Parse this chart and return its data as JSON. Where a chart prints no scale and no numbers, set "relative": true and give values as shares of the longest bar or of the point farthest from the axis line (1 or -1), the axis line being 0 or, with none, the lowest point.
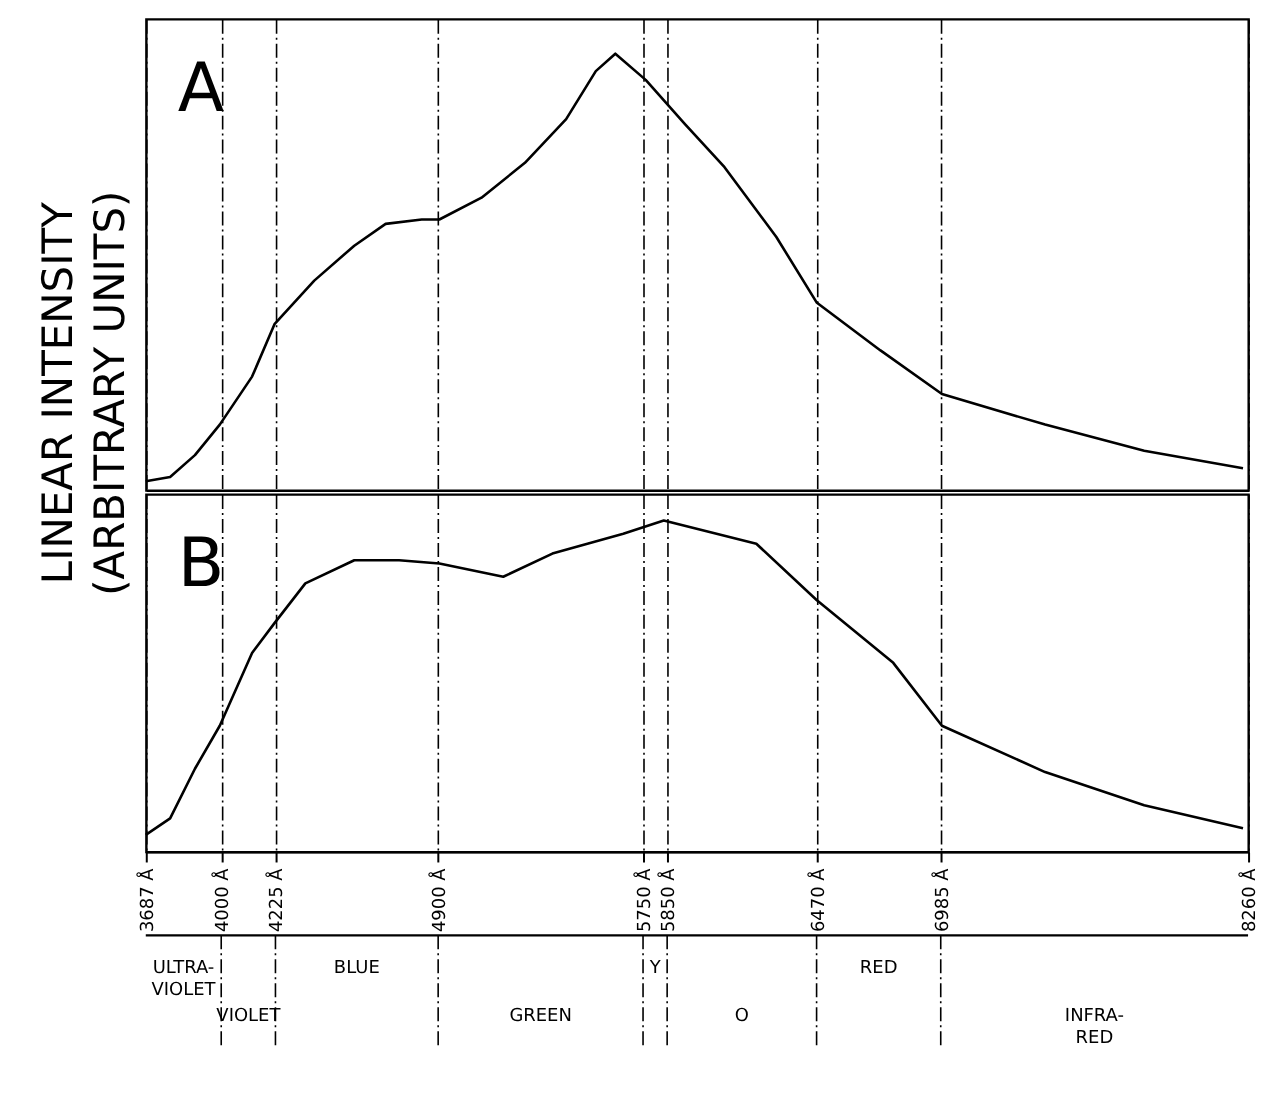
{
  "chart_data": [
    {
      "type": "line",
      "relative": true,
      "ylabel": "LINEAR INTENSITY\n(ARBITRARY UNITS)",
      "annotations": [
        "A"
      ],
      "color": "#000000",
      "grid": "x",
      "tick_labels": false,
      "x": [
        3687,
        3788,
        3891,
        3994,
        4128,
        4221,
        4386,
        4552,
        4682,
        4832,
        4905,
        5080,
        5260,
        5431,
        5554,
        5635,
        5761,
        5922,
        6088,
        6303,
        6470,
        6735,
        6990,
        7418,
        7829,
        8239
      ],
      "values": [
        0.02,
        0.03,
        0.08,
        0.15,
        0.26,
        0.38,
        0.48,
        0.56,
        0.61,
        0.62,
        0.62,
        0.67,
        0.75,
        0.85,
        0.96,
        1.0,
        0.94,
        0.84,
        0.74,
        0.58,
        0.43,
        0.32,
        0.22,
        0.15,
        0.09,
        0.05
      ],
      "xlim": [
        3687,
        8260
      ]
    },
    {
      "type": "line",
      "relative": true,
      "annotations": [
        "B"
      ],
      "color": "#000000",
      "grid": "x",
      "tick_labels": "x",
      "x": [
        3687,
        3788,
        3891,
        3994,
        4128,
        4221,
        4349,
        4552,
        4738,
        4905,
        5170,
        5374,
        5668,
        5836,
        6220,
        6470,
        6788,
        6990,
        7418,
        7829,
        8239
      ],
      "values": [
        0.05,
        0.1,
        0.25,
        0.38,
        0.6,
        0.69,
        0.81,
        0.88,
        0.88,
        0.87,
        0.83,
        0.9,
        0.96,
        1.0,
        0.93,
        0.76,
        0.57,
        0.38,
        0.24,
        0.14,
        0.07
      ],
      "xlim": [
        3687,
        8260
      ],
      "xticks": [
        {
          "value": 3687,
          "label": "3687 Å"
        },
        {
          "value": 4000,
          "label": "4000 Å"
        },
        {
          "value": 4225,
          "label": "4225 Å"
        },
        {
          "value": 4900,
          "label": "4900 Å"
        },
        {
          "value": 5750,
          "label": "5750 Å"
        },
        {
          "value": 5850,
          "label": "5850 Å"
        },
        {
          "value": 6470,
          "label": "6470 Å"
        },
        {
          "value": 6985,
          "label": "6985 Å"
        },
        {
          "value": 8260,
          "label": "8260 Å"
        }
      ]
    },
    {
      "type": "other",
      "annotations": [
        "ULTRA-VIOLET",
        "VIOLET",
        "BLUE",
        "GREEN",
        "Y",
        "O",
        "RED",
        "INFRA-RED"
      ]
    }
  ]
}
